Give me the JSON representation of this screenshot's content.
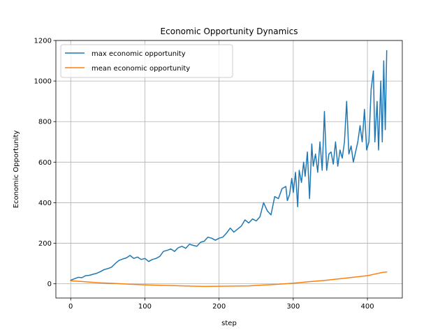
{
  "chart_data": {
    "type": "line",
    "title": "Economic Opportunity Dynamics",
    "xlabel": "step",
    "ylabel": "Economic Opportunity",
    "xlim": [
      -20,
      447
    ],
    "ylim": [
      -70,
      1200
    ],
    "xticks": [
      0,
      100,
      200,
      300,
      400
    ],
    "yticks": [
      0,
      200,
      400,
      600,
      800,
      1000,
      1200
    ],
    "grid": true,
    "legend_position": "upper-left",
    "series": [
      {
        "name": "max economic opportunity",
        "color": "#1f77b4",
        "x": [
          0,
          5,
          10,
          15,
          20,
          25,
          30,
          35,
          40,
          45,
          50,
          55,
          60,
          65,
          70,
          75,
          80,
          85,
          90,
          95,
          100,
          105,
          110,
          115,
          120,
          125,
          130,
          135,
          140,
          145,
          150,
          155,
          160,
          165,
          170,
          175,
          180,
          185,
          190,
          195,
          200,
          205,
          210,
          215,
          220,
          225,
          230,
          235,
          240,
          245,
          250,
          255,
          260,
          265,
          270,
          275,
          280,
          285,
          290,
          292,
          295,
          298,
          300,
          303,
          306,
          308,
          311,
          314,
          316,
          319,
          322,
          325,
          327,
          330,
          333,
          336,
          339,
          342,
          345,
          348,
          351,
          354,
          357,
          360,
          363,
          366,
          369,
          372,
          375,
          378,
          381,
          384,
          387,
          390,
          393,
          396,
          399,
          402,
          405,
          408,
          410,
          413,
          415,
          418,
          420,
          422,
          424,
          426
        ],
        "y": [
          18,
          25,
          32,
          30,
          40,
          42,
          47,
          52,
          60,
          70,
          75,
          82,
          100,
          115,
          122,
          128,
          140,
          125,
          132,
          120,
          125,
          110,
          120,
          125,
          135,
          160,
          165,
          172,
          160,
          178,
          185,
          175,
          195,
          190,
          185,
          205,
          210,
          230,
          225,
          215,
          225,
          230,
          250,
          275,
          255,
          270,
          285,
          315,
          300,
          320,
          310,
          330,
          400,
          360,
          340,
          430,
          420,
          470,
          480,
          410,
          440,
          520,
          450,
          550,
          380,
          560,
          500,
          600,
          530,
          650,
          420,
          690,
          580,
          640,
          550,
          700,
          560,
          850,
          560,
          640,
          650,
          590,
          700,
          580,
          660,
          620,
          700,
          900,
          640,
          680,
          600,
          650,
          700,
          780,
          700,
          860,
          660,
          700,
          960,
          1050,
          700,
          900,
          660,
          1000,
          700,
          1100,
          760,
          1150
        ]
      },
      {
        "name": "mean economic opportunity",
        "color": "#ff7f0e",
        "x": [
          0,
          20,
          40,
          60,
          80,
          100,
          120,
          140,
          160,
          180,
          200,
          220,
          240,
          260,
          280,
          300,
          320,
          340,
          360,
          380,
          400,
          410,
          420,
          426
        ],
        "y": [
          15,
          10,
          5,
          2,
          -2,
          -5,
          -7,
          -9,
          -11,
          -13,
          -12,
          -11,
          -10,
          -6,
          -2,
          3,
          10,
          16,
          24,
          32,
          40,
          48,
          56,
          58
        ]
      }
    ]
  }
}
